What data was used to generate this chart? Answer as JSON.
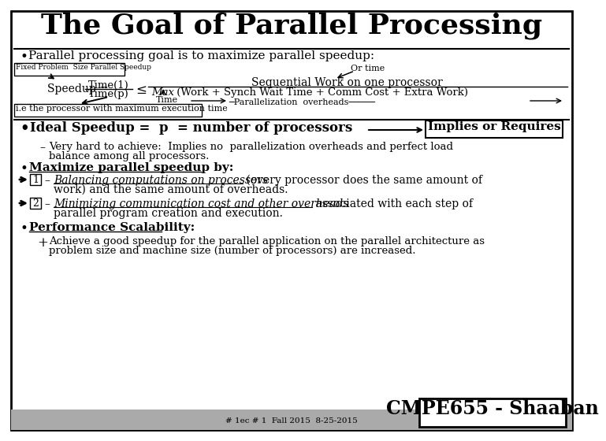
{
  "title": "The Goal of Parallel Processing",
  "bg_color": "#ffffff",
  "border_color": "#000000",
  "title_fontsize": 26,
  "footer_text": "CMPE655 - Shaaban",
  "footer_sub": "# 1ec # 1  Fall 2015  8-25-2015"
}
